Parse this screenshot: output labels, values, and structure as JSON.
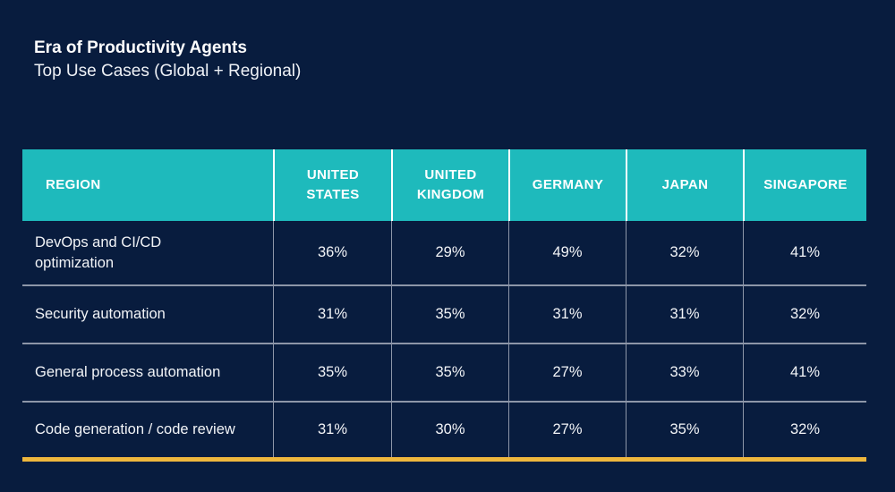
{
  "colors": {
    "background": "#081c3e",
    "header_teal": "#1ebabc",
    "accent_gold": "#eeb73d",
    "grid_line": "#8d96a8",
    "text": "#ffffff"
  },
  "chart_data": {
    "type": "table",
    "title": "Era of Productivity Agents",
    "subtitle": "Top Use Cases (Global + Regional)",
    "columns": [
      "REGION",
      "UNITED\nSTATES",
      "UNITED\nKINGDOM",
      "GERMANY",
      "JAPAN",
      "SINGAPORE"
    ],
    "rows": [
      {
        "label": "DevOps and CI/CD\noptimization",
        "values": [
          "36%",
          "29%",
          "49%",
          "32%",
          "41%"
        ]
      },
      {
        "label": "Security automation",
        "values": [
          "31%",
          "35%",
          "31%",
          "31%",
          "32%"
        ]
      },
      {
        "label": "General process automation",
        "values": [
          "35%",
          "35%",
          "27%",
          "33%",
          "41%"
        ]
      },
      {
        "label": "Code generation / code review",
        "values": [
          "31%",
          "30%",
          "27%",
          "35%",
          "32%"
        ]
      }
    ]
  }
}
